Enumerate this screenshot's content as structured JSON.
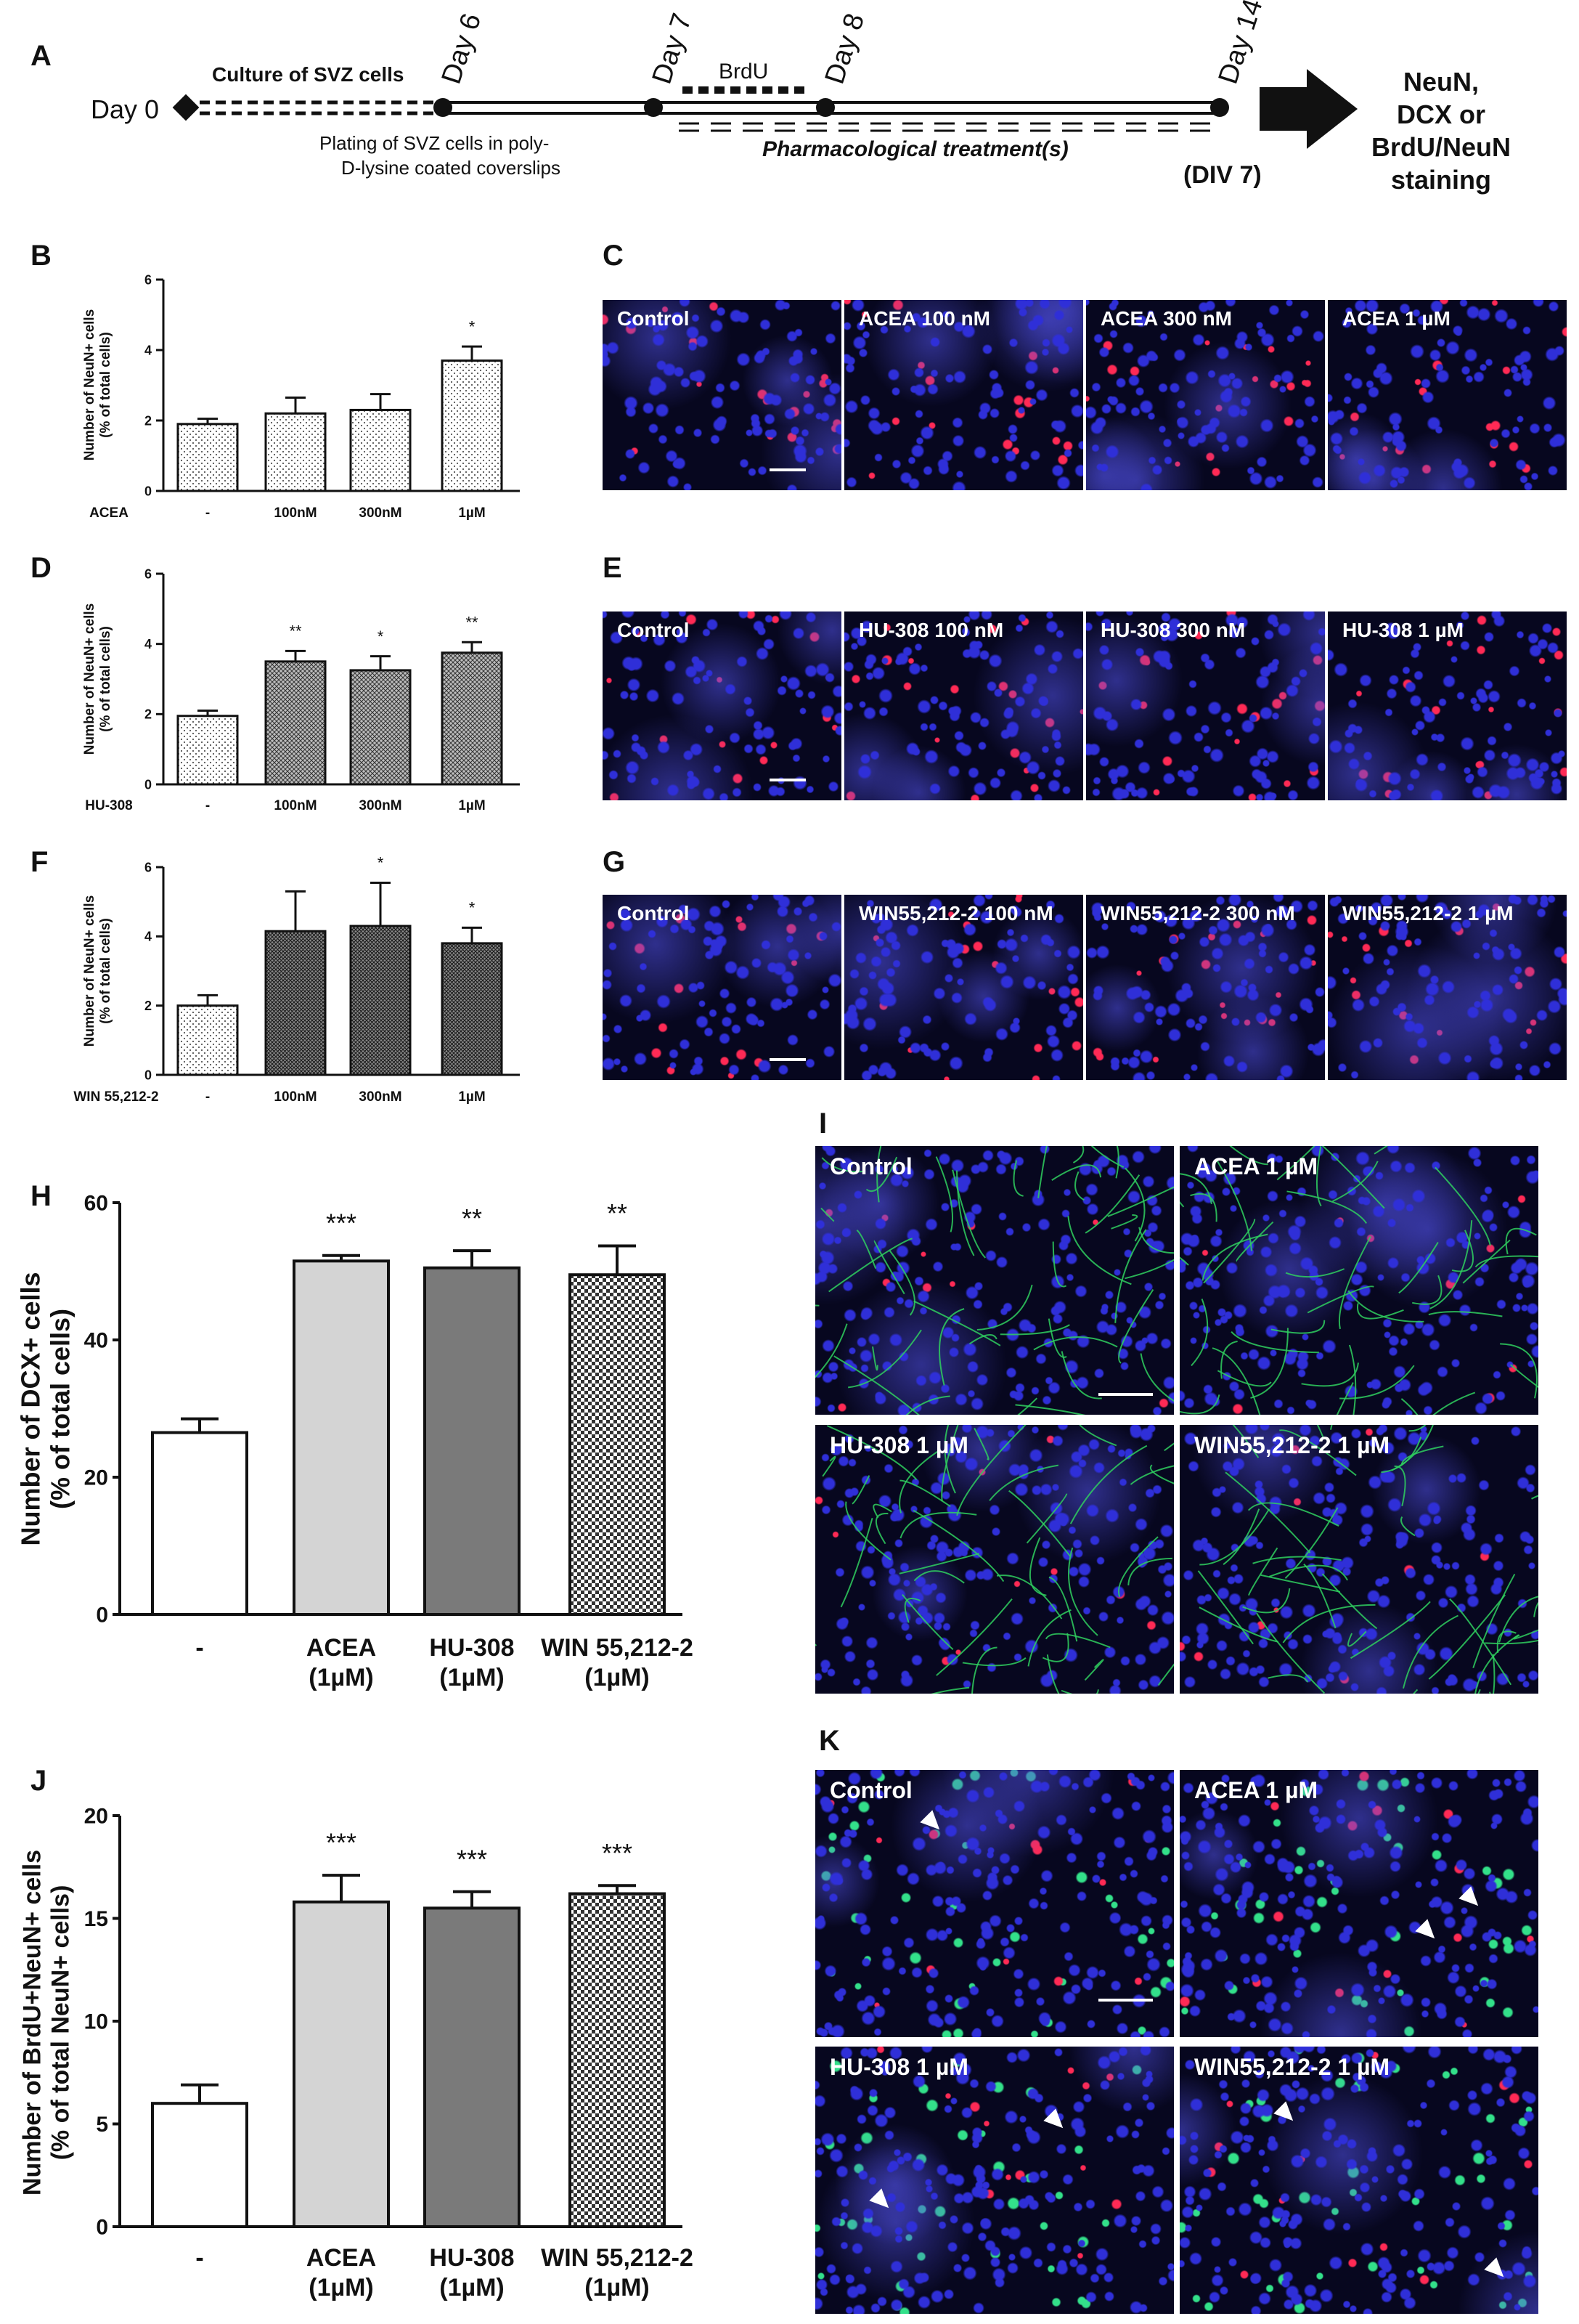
{
  "panel_letters": {
    "A": "A",
    "B": "B",
    "C": "C",
    "D": "D",
    "E": "E",
    "F": "F",
    "G": "G",
    "H": "H",
    "I": "I",
    "J": "J",
    "K": "K"
  },
  "timeline": {
    "day0": "Day 0",
    "day6": "Day 6",
    "day7": "Day 7",
    "day8": "Day 8",
    "day14": "Day 14",
    "culture": "Culture of SVZ cells",
    "plating_line1": "Plating of SVZ cells in poly-",
    "plating_line2": "D-lysine coated coverslips",
    "brdu": "BrdU",
    "treatment": "Pharmacological treatment(s)",
    "div": "(DIV 7)",
    "outcome": [
      "NeuN,",
      "DCX or",
      "BrdU/NeuN",
      "staining"
    ]
  },
  "colors": {
    "micro_bg": "#07071f",
    "nucleus_blue": "#2f2fd8",
    "neun_red": "#ff2a55",
    "dcx_green": "#2fcf5f",
    "brdu_green": "#33e08a",
    "bar_light_gray": "#d4d4d4",
    "bar_dark_gray": "#7a7a7a"
  },
  "chart_data": [
    {
      "id": "B",
      "type": "bar",
      "ylabel": "Number of NeuN+ cells\n(% of total cells)",
      "row_label": "ACEA",
      "categories": [
        "-",
        "100nM",
        "300nM",
        "1µM"
      ],
      "values": [
        1.9,
        2.2,
        2.3,
        3.7
      ],
      "errors": [
        0.15,
        0.45,
        0.45,
        0.4
      ],
      "significance": [
        "",
        "",
        "",
        "*"
      ],
      "yticks": [
        0,
        2,
        4,
        6
      ],
      "ylim": [
        0,
        6
      ],
      "patterns": [
        "dots",
        "dots",
        "dots",
        "dots"
      ]
    },
    {
      "id": "D",
      "type": "bar",
      "ylabel": "Number of NeuN+ cells\n(% of total cells)",
      "row_label": "HU-308",
      "categories": [
        "-",
        "100nM",
        "300nM",
        "1µM"
      ],
      "values": [
        1.95,
        3.5,
        3.25,
        3.75
      ],
      "errors": [
        0.15,
        0.3,
        0.4,
        0.3
      ],
      "significance": [
        "",
        "**",
        "*",
        "**"
      ],
      "yticks": [
        0,
        2,
        4,
        6
      ],
      "ylim": [
        0,
        6
      ],
      "patterns": [
        "dots",
        "cross",
        "cross",
        "cross"
      ]
    },
    {
      "id": "F",
      "type": "bar",
      "ylabel": "Number of NeuN+ cells\n(% of total cells)",
      "row_label": "WIN 55,212-2",
      "categories": [
        "-",
        "100nM",
        "300nM",
        "1µM"
      ],
      "values": [
        2.0,
        4.15,
        4.3,
        3.8
      ],
      "errors": [
        0.3,
        1.15,
        1.25,
        0.45
      ],
      "significance": [
        "",
        "",
        "*",
        "*"
      ],
      "yticks": [
        0,
        2,
        4,
        6
      ],
      "ylim": [
        0,
        6
      ],
      "patterns": [
        "dots",
        "dense",
        "dense",
        "dense"
      ]
    },
    {
      "id": "H",
      "type": "bar",
      "ylabel": "Number of DCX+ cells\n(% of total cells)",
      "categories": [
        "-",
        "ACEA\n(1µM)",
        "HU-308\n(1µM)",
        "WIN 55,212-2\n(1µM)"
      ],
      "values": [
        26.5,
        51.5,
        50.5,
        49.5
      ],
      "errors": [
        2.0,
        0.8,
        2.5,
        4.2
      ],
      "significance": [
        "",
        "***",
        "**",
        "**"
      ],
      "yticks": [
        0,
        20,
        40,
        60
      ],
      "ylim": [
        0,
        60
      ],
      "patterns": [
        "white",
        "light",
        "dark",
        "check"
      ]
    },
    {
      "id": "J",
      "type": "bar",
      "ylabel": "Number of BrdU+NeuN+ cells\n(% of total NeuN+ cells)",
      "categories": [
        "-",
        "ACEA\n(1µM)",
        "HU-308\n(1µM)",
        "WIN 55,212-2\n(1µM)"
      ],
      "values": [
        6.0,
        15.8,
        15.5,
        16.2
      ],
      "errors": [
        0.9,
        1.3,
        0.8,
        0.4
      ],
      "significance": [
        "",
        "***",
        "***",
        "***"
      ],
      "yticks": [
        0,
        5,
        10,
        15,
        20
      ],
      "ylim": [
        0,
        20
      ],
      "patterns": [
        "white",
        "light",
        "dark",
        "check"
      ]
    }
  ],
  "micrographs": {
    "C": [
      "Control",
      "ACEA 100 nM",
      "ACEA 300 nM",
      "ACEA 1 µM"
    ],
    "E": [
      "Control",
      "HU-308 100 nM",
      "HU-308 300 nM",
      "HU-308 1 µM"
    ],
    "G": [
      "Control",
      "WIN55,212-2 100 nM",
      "WIN55,212-2 300 nM",
      "WIN55,212-2 1 µM"
    ],
    "I": [
      "Control",
      "ACEA 1 µM",
      "HU-308 1 µM",
      "WIN55,212-2 1 µM"
    ],
    "K": [
      "Control",
      "ACEA 1 µM",
      "HU-308 1 µM",
      "WIN55,212-2 1 µM"
    ]
  }
}
